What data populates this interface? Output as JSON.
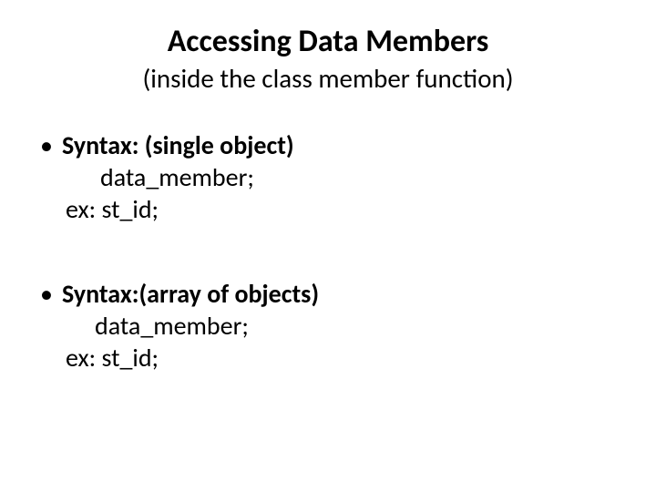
{
  "title": {
    "text": "Accessing Data Members",
    "fontsize": 34,
    "fontweight": "bold",
    "color": "#000000"
  },
  "subtitle": {
    "text": "(inside the class member function)",
    "fontsize": 29,
    "color": "#000000"
  },
  "body_fontsize": 28,
  "bullet_char": "•",
  "block1": {
    "heading": "Syntax: (single object)",
    "line1": "data_member;",
    "line2": "ex:  st_id;"
  },
  "block2": {
    "heading": "Syntax:(array of objects)",
    "line1": "data_member;",
    "line2": "ex: st_id;"
  },
  "background_color": "#ffffff",
  "text_color": "#000000"
}
